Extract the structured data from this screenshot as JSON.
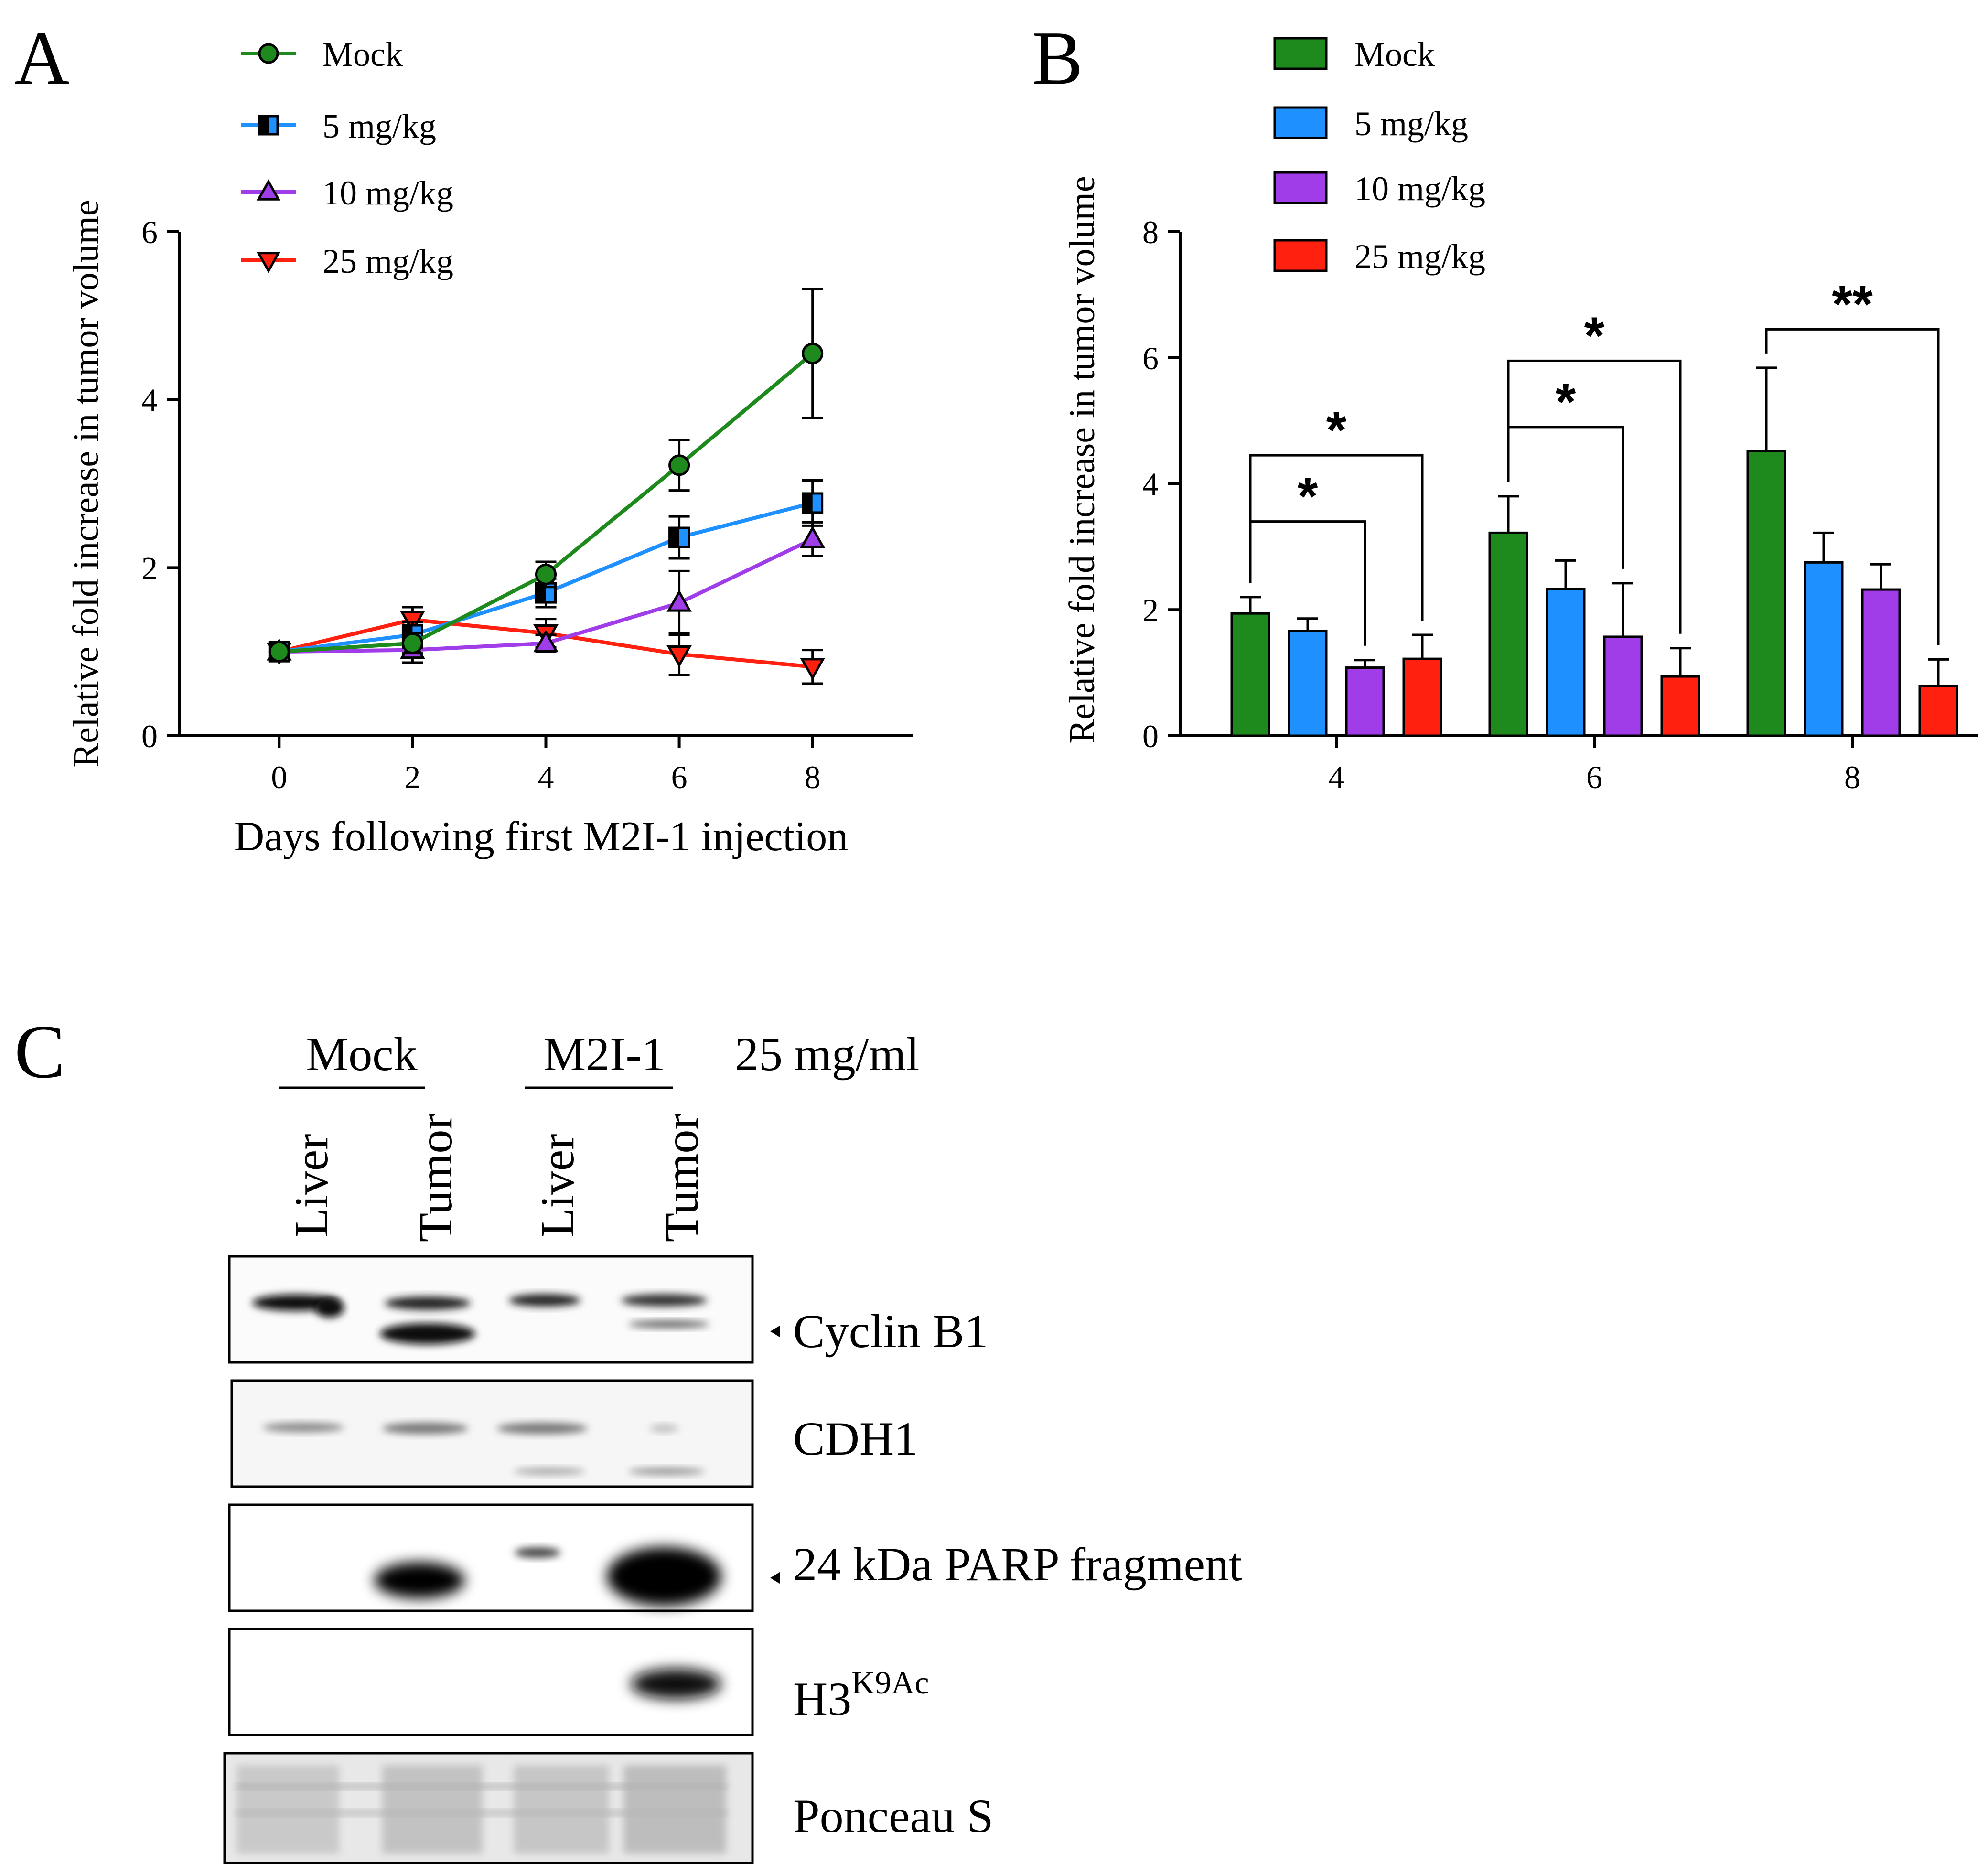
{
  "panel_a": {
    "letter": "A"
  },
  "panel_b": {
    "letter": "B"
  },
  "panel_c": {
    "letter": "C",
    "group_labels": [
      "Mock",
      "M2I-1"
    ],
    "dose_label": "25 mg/ml",
    "lane_labels": [
      "Liver",
      "Tumor",
      "Liver",
      "Tumor"
    ],
    "blots": [
      {
        "label": "Cyclin B1",
        "arrow": true
      },
      {
        "label": "CDH1",
        "arrow": false
      },
      {
        "label": "24 kDa PARP fragment",
        "arrow": true
      },
      {
        "label": "H3",
        "sup": "K9Ac",
        "arrow": false
      },
      {
        "label": "Ponceau S",
        "arrow": false
      }
    ]
  },
  "colors": {
    "mock": "#1e8a1e",
    "dose5": "#1e90ff",
    "dose10": "#a03ce8",
    "dose25": "#ff2010"
  },
  "chart_data": [
    {
      "type": "line",
      "xlabel": "Days following first M2I-1 injection",
      "ylabel": "Relative fold increase in tumor volume",
      "xlim": [
        -1.5,
        9.5
      ],
      "ylim": [
        0,
        6
      ],
      "xticks": [
        0,
        2,
        4,
        6,
        8
      ],
      "yticks": [
        0,
        2,
        4,
        6
      ],
      "legend": "top-left",
      "x": [
        0,
        2,
        4,
        6,
        8
      ],
      "series": [
        {
          "name": "Mock",
          "marker": "circle",
          "color": "#1e8a1e",
          "values": [
            1.0,
            1.1,
            1.92,
            3.22,
            4.55
          ],
          "errors": [
            0.05,
            0.12,
            0.15,
            0.3,
            0.77
          ]
        },
        {
          "name": "5 mg/kg",
          "marker": "square",
          "color": "#1e90ff",
          "values": [
            1.0,
            1.2,
            1.7,
            2.36,
            2.77
          ],
          "errors": [
            0.05,
            0.15,
            0.17,
            0.25,
            0.27
          ]
        },
        {
          "name": "10 mg/kg",
          "marker": "triangle-up",
          "color": "#a03ce8",
          "values": [
            1.0,
            1.02,
            1.1,
            1.58,
            2.34
          ],
          "errors": [
            0.05,
            0.15,
            0.1,
            0.38,
            0.2
          ]
        },
        {
          "name": "25 mg/kg",
          "marker": "triangle-down",
          "color": "#ff2010",
          "values": [
            1.0,
            1.38,
            1.22,
            0.97,
            0.82
          ],
          "errors": [
            0.05,
            0.15,
            0.17,
            0.25,
            0.2
          ]
        }
      ]
    },
    {
      "type": "bar",
      "xlabel": "",
      "ylabel": "Relative fold increase in tumor volume",
      "categories": [
        "4",
        "6",
        "8"
      ],
      "ylim": [
        0,
        8
      ],
      "yticks": [
        0,
        2,
        4,
        6,
        8
      ],
      "legend": "top-right",
      "series": [
        {
          "name": "Mock",
          "color": "#1e8a1e",
          "values": [
            1.94,
            3.22,
            4.52
          ],
          "errors": [
            0.26,
            0.58,
            1.32
          ]
        },
        {
          "name": "5 mg/kg",
          "color": "#1e90ff",
          "values": [
            1.66,
            2.33,
            2.75
          ],
          "errors": [
            0.2,
            0.45,
            0.47
          ]
        },
        {
          "name": "10 mg/kg",
          "color": "#a03ce8",
          "values": [
            1.08,
            1.57,
            2.32
          ],
          "errors": [
            0.12,
            0.85,
            0.4
          ]
        },
        {
          "name": "25 mg/kg",
          "color": "#ff2010",
          "values": [
            1.22,
            0.94,
            0.79
          ],
          "errors": [
            0.38,
            0.45,
            0.42
          ]
        }
      ],
      "significance": [
        {
          "category": 0,
          "from": 0,
          "to": 2,
          "label": "*",
          "y": 3.4
        },
        {
          "category": 0,
          "from": 0,
          "to": 3,
          "label": "*",
          "y": 4.45
        },
        {
          "category": 1,
          "from": 0,
          "to": 2,
          "label": "*",
          "y": 4.9
        },
        {
          "category": 1,
          "from": 0,
          "to": 3,
          "label": "*",
          "y": 5.95
        },
        {
          "category": 2,
          "from": 0,
          "to": 3,
          "label": "**",
          "y": 6.45
        }
      ]
    }
  ]
}
